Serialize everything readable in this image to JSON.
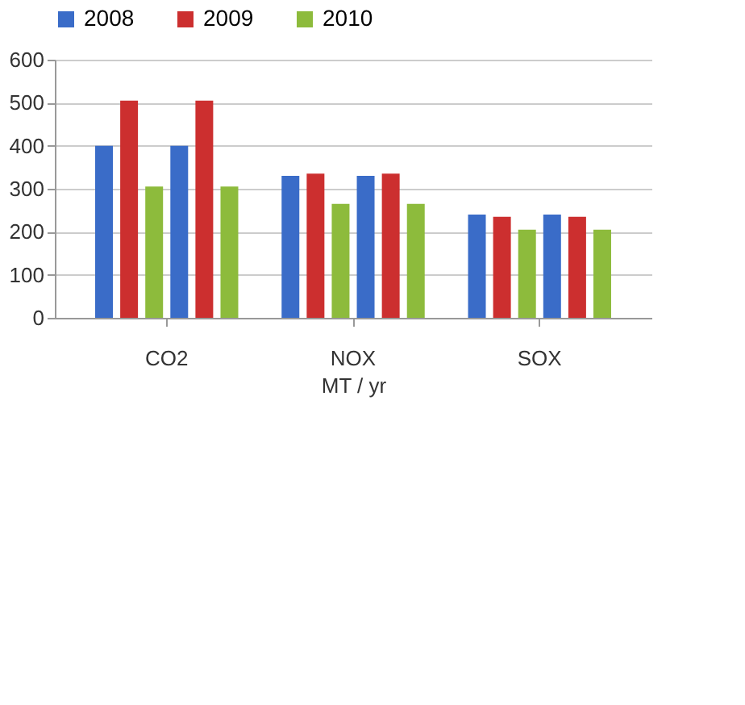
{
  "chart_data": {
    "type": "bar",
    "categories": [
      "CO2",
      "NOX",
      "SOX"
    ],
    "xlabel": "MT / yr",
    "series": [
      {
        "name": "2008",
        "color": "#3a6cc8",
        "values": [
          400,
          330,
          240
        ]
      },
      {
        "name": "2009",
        "color": "#cc2f2f",
        "values": [
          505,
          335,
          235
        ]
      },
      {
        "name": "2010",
        "color": "#8dbb3c",
        "values": [
          305,
          265,
          205
        ]
      },
      {
        "color": "#3a6cc8",
        "values": [
          400,
          330,
          240
        ]
      },
      {
        "color": "#cc2f2f",
        "values": [
          505,
          335,
          235
        ]
      },
      {
        "color": "#8dbb3c",
        "values": [
          305,
          265,
          205
        ]
      }
    ],
    "ylim": [
      0,
      600
    ],
    "yticks": [
      0,
      100,
      200,
      300,
      400,
      500,
      600
    ],
    "grid": "y",
    "legend": "top"
  }
}
